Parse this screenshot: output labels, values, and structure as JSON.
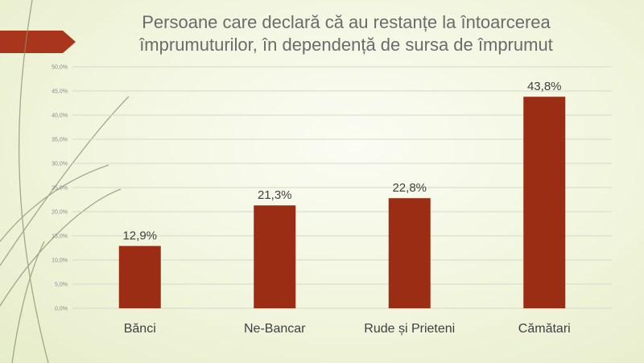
{
  "title": {
    "line1": "Persoane care declară că au restanțe la întoarcerea",
    "line2": "împrumuturilor, în dependență de sursa de împrumut"
  },
  "colors": {
    "bar": "#9b2d14",
    "accent_ribbon": "#a9361c",
    "gridline": "#d6d9c6",
    "decor_lines": "#8a8f6a"
  },
  "chart_data": {
    "type": "bar",
    "title": "",
    "xlabel": "",
    "ylabel": "",
    "categories": [
      "Bănci",
      "Ne-Bancar",
      "Rude și Prieteni",
      "Cămătari"
    ],
    "values": [
      12.9,
      21.3,
      22.8,
      43.8
    ],
    "data_labels": [
      "12,9%",
      "21,3%",
      "22,8%",
      "43,8%"
    ],
    "ylim": [
      0,
      50
    ],
    "yticks": [
      "0,0%",
      "5,0%",
      "10,0%",
      "15,0%",
      "20,0%",
      "25,0%",
      "30,0%",
      "35,0%",
      "40,0%",
      "45,0%",
      "50,0%"
    ],
    "grid": true,
    "legend": "none"
  }
}
